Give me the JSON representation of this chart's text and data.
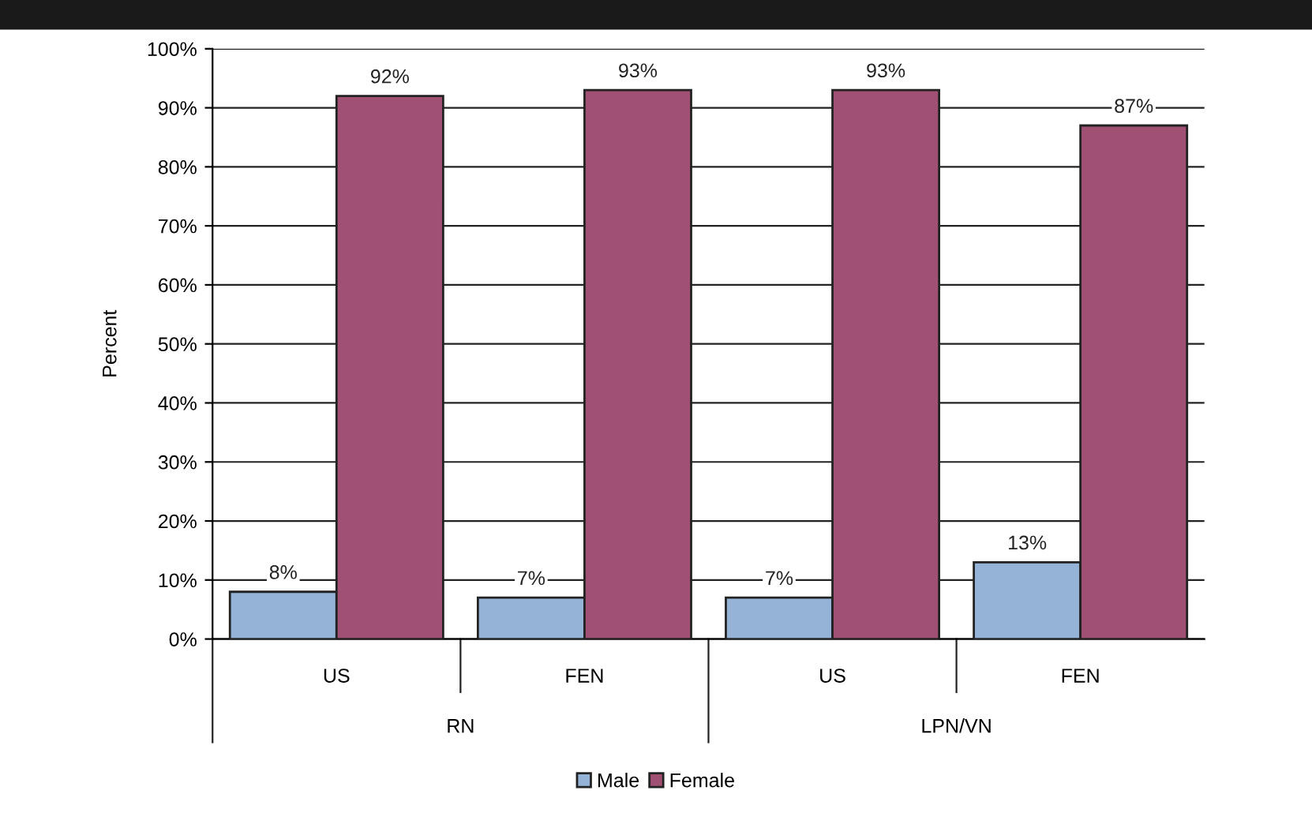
{
  "chart_data": {
    "type": "bar",
    "ylabel": "Percent",
    "categories": [
      "US",
      "FEN",
      "US",
      "FEN"
    ],
    "annotations": [
      "RN",
      "LPN/VN"
    ],
    "series": [
      {
        "name": "Male",
        "color": "#95b3d7",
        "values": [
          8,
          7,
          7,
          13
        ],
        "value_labels": [
          "8%",
          "7%",
          "7%",
          "13%"
        ]
      },
      {
        "name": "Female",
        "color": "#a05072",
        "values": [
          92,
          93,
          93,
          87
        ],
        "value_labels": [
          "92%",
          "93%",
          "93%",
          "87%"
        ]
      }
    ],
    "ylim": [
      0,
      100
    ],
    "yticks": [
      {
        "value": 0,
        "label": "0%"
      },
      {
        "value": 10,
        "label": "10%"
      },
      {
        "value": 20,
        "label": "20%"
      },
      {
        "value": 30,
        "label": "30%"
      },
      {
        "value": 40,
        "label": "40%"
      },
      {
        "value": 50,
        "label": "50%"
      },
      {
        "value": 60,
        "label": "60%"
      },
      {
        "value": 70,
        "label": "70%"
      },
      {
        "value": 80,
        "label": "80%"
      },
      {
        "value": 90,
        "label": "90%"
      },
      {
        "value": 100,
        "label": "100%"
      }
    ],
    "grid": "y",
    "legend": "bottom"
  }
}
